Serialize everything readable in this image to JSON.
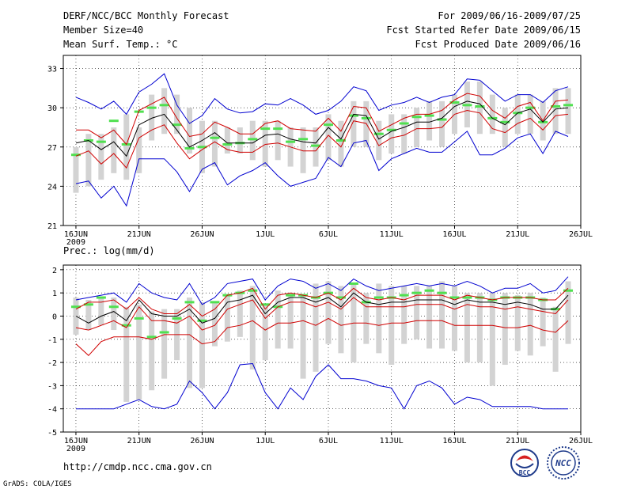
{
  "header": {
    "title": "DERF/NCC/BCC Monthly Forecast",
    "member_size": "Member Size=40",
    "variable": "Mean Surf. Temp.: °C",
    "period": "For 2009/06/16-2009/07/25",
    "fcst_refer": "Fcst Started Refer Date 2009/06/15",
    "fcst_produced": "Fcst Produced Date 2009/06/16"
  },
  "footer": {
    "url": "http://cmdp.ncc.cma.gov.cn",
    "grads": "GrADS: COLA/IGES",
    "logo_bcc": "BCC",
    "logo_ncc": "NCC"
  },
  "colors": {
    "box": "#d3d3d3",
    "member": "#50e050",
    "envelope": "#0000d0",
    "spread": "#d00000",
    "mean": "#000000",
    "grid": "#000000"
  },
  "chart_data": [
    {
      "type": "line",
      "title": "Mean Surf. Temp.: °C",
      "xlabel": "",
      "ylabel": "°C",
      "x_tick_labels": [
        "16JUN",
        "21JUN",
        "26JUN",
        "1JUL",
        "6JUL",
        "11JUL",
        "16JUL",
        "21JUL",
        "26JUL"
      ],
      "x_tick_days": [
        0,
        5,
        10,
        15,
        20,
        25,
        30,
        35,
        40
      ],
      "x_year_label": "2009",
      "xlim": [
        -1,
        40
      ],
      "ylim": [
        21,
        34
      ],
      "y_ticks": [
        21,
        24,
        27,
        30,
        33
      ],
      "y_tick_labels": [
        "21",
        "24",
        "27",
        "30",
        "33"
      ],
      "grid": true,
      "days": [
        0,
        1,
        2,
        3,
        4,
        5,
        6,
        7,
        8,
        9,
        10,
        11,
        12,
        13,
        14,
        15,
        16,
        17,
        18,
        19,
        20,
        21,
        22,
        23,
        24,
        25,
        26,
        27,
        28,
        29,
        30,
        31,
        32,
        33,
        34,
        35,
        36,
        37,
        38,
        39
      ],
      "series": [
        {
          "name": "max",
          "values": [
            30.8,
            30.4,
            29.9,
            30.5,
            29.5,
            31.2,
            31.8,
            32.6,
            30.2,
            28.8,
            29.4,
            30.7,
            29.9,
            29.6,
            29.7,
            30.3,
            30.2,
            30.7,
            30.2,
            29.5,
            29.8,
            30.5,
            31.6,
            31.3,
            29.8,
            30.2,
            30.4,
            30.8,
            30.4,
            30.8,
            31.0,
            32.2,
            32.1,
            31.3,
            30.5,
            31.0,
            31.0,
            30.4,
            31.3,
            31.6
          ]
        },
        {
          "name": "upper",
          "values": [
            28.3,
            28.3,
            27.7,
            28.3,
            27.2,
            29.8,
            30.3,
            30.8,
            29.2,
            27.8,
            28.0,
            28.9,
            28.5,
            28.0,
            28.0,
            28.8,
            29.0,
            28.4,
            28.3,
            28.2,
            29.2,
            28.2,
            30.1,
            30.0,
            28.2,
            28.7,
            29.2,
            29.5,
            29.5,
            29.8,
            30.6,
            31.1,
            30.9,
            29.8,
            29.2,
            30.1,
            30.4,
            29.0,
            30.5,
            30.6
          ]
        },
        {
          "name": "mean",
          "values": [
            27.3,
            27.5,
            26.8,
            27.4,
            26.3,
            28.7,
            29.2,
            29.5,
            28.3,
            27.0,
            27.5,
            28.1,
            27.3,
            27.3,
            27.3,
            27.9,
            28.0,
            27.6,
            27.4,
            27.3,
            28.5,
            27.6,
            29.5,
            29.4,
            27.6,
            28.2,
            28.5,
            28.9,
            28.9,
            29.2,
            30.1,
            30.5,
            30.3,
            29.2,
            28.7,
            29.6,
            29.9,
            28.9,
            29.9,
            30.0
          ]
        },
        {
          "name": "lower",
          "values": [
            26.3,
            26.7,
            25.7,
            26.5,
            25.4,
            27.7,
            28.3,
            28.7,
            27.3,
            26.1,
            26.8,
            27.4,
            26.8,
            26.6,
            26.6,
            27.2,
            27.3,
            27.0,
            26.7,
            26.7,
            27.9,
            27.0,
            29.0,
            28.8,
            27.1,
            27.7,
            27.9,
            28.4,
            28.4,
            28.5,
            29.5,
            29.8,
            29.6,
            28.4,
            28.1,
            28.8,
            29.2,
            28.3,
            29.4,
            29.5
          ]
        },
        {
          "name": "min",
          "values": [
            24.2,
            24.4,
            23.1,
            24.0,
            22.5,
            26.1,
            26.1,
            26.1,
            25.1,
            23.6,
            25.3,
            25.8,
            24.1,
            24.8,
            25.2,
            25.8,
            24.8,
            24.0,
            24.3,
            24.6,
            26.2,
            25.5,
            27.3,
            27.5,
            25.2,
            26.1,
            26.5,
            26.9,
            26.6,
            26.6,
            27.4,
            28.2,
            26.4,
            26.4,
            26.9,
            27.7,
            28.0,
            26.5,
            28.2,
            27.8
          ]
        }
      ],
      "ensemble_boxes": [
        [
          23.5,
          27.0
        ],
        [
          24.0,
          28.0
        ],
        [
          24.5,
          28.0
        ],
        [
          25.0,
          28.5
        ],
        [
          24.5,
          29.5
        ],
        [
          25.0,
          28.5
        ],
        [
          27.5,
          31.0
        ],
        [
          28.0,
          31.5
        ],
        [
          28.0,
          31.0
        ],
        [
          26.5,
          30.0
        ],
        [
          25.0,
          29.0
        ],
        [
          25.5,
          29.0
        ],
        [
          26.5,
          28.5
        ],
        [
          26.5,
          28.5
        ],
        [
          26.0,
          29.0
        ],
        [
          25.5,
          29.0
        ],
        [
          26.0,
          29.0
        ],
        [
          25.5,
          28.5
        ],
        [
          25.0,
          28.5
        ],
        [
          25.5,
          28.5
        ],
        [
          26.0,
          29.5
        ],
        [
          25.5,
          29.0
        ],
        [
          27.0,
          30.5
        ],
        [
          27.0,
          30.5
        ],
        [
          26.0,
          29.0
        ],
        [
          26.5,
          29.5
        ],
        [
          26.5,
          29.5
        ],
        [
          27.0,
          30.0
        ],
        [
          27.5,
          30.5
        ],
        [
          27.0,
          30.5
        ],
        [
          28.0,
          31.0
        ],
        [
          28.5,
          32.0
        ],
        [
          28.0,
          32.0
        ],
        [
          28.0,
          31.0
        ],
        [
          27.0,
          30.0
        ],
        [
          28.0,
          31.0
        ],
        [
          28.0,
          31.0
        ],
        [
          27.5,
          30.5
        ],
        [
          28.0,
          31.5
        ],
        [
          28.0,
          31.5
        ]
      ],
      "member_marks": [
        26.4,
        27.5,
        27.4,
        29.0,
        27.2,
        29.7,
        30.0,
        30.2,
        28.7,
        26.9,
        27.0,
        27.7,
        27.2,
        27.3,
        27.6,
        28.4,
        28.4,
        27.4,
        27.6,
        27.1,
        28.7,
        27.5,
        29.4,
        29.2,
        28.0,
        28.3,
        28.8,
        29.3,
        29.4,
        29.1,
        30.4,
        30.2,
        30.1,
        29.2,
        28.9,
        29.6,
        30.0,
        28.9,
        30.1,
        30.2
      ]
    },
    {
      "type": "line",
      "title": "Prec.: log(mm/d)",
      "xlabel": "",
      "ylabel": "log(mm/d)",
      "x_tick_labels": [
        "16JUN",
        "21JUN",
        "26JUN",
        "1JUL",
        "6JUL",
        "11JUL",
        "16JUL",
        "21JUL",
        "26JUL"
      ],
      "x_tick_days": [
        0,
        5,
        10,
        15,
        20,
        25,
        30,
        35,
        40
      ],
      "x_year_label": "2009",
      "xlim": [
        -1,
        40
      ],
      "ylim": [
        -5,
        2.2
      ],
      "y_ticks": [
        -5,
        -4,
        -3,
        -2,
        -1,
        0,
        1,
        2
      ],
      "y_tick_labels": [
        "-5",
        "-4",
        "-3",
        "-2",
        "-1",
        "0",
        "1",
        "2"
      ],
      "grid": true,
      "days": [
        0,
        1,
        2,
        3,
        4,
        5,
        6,
        7,
        8,
        9,
        10,
        11,
        12,
        13,
        14,
        15,
        16,
        17,
        18,
        19,
        20,
        21,
        22,
        23,
        24,
        25,
        26,
        27,
        28,
        29,
        30,
        31,
        32,
        33,
        34,
        35,
        36,
        37,
        38,
        39
      ],
      "series": [
        {
          "name": "max",
          "values": [
            0.7,
            0.8,
            0.9,
            1.0,
            0.6,
            1.4,
            1.0,
            0.8,
            0.7,
            1.4,
            0.5,
            0.8,
            1.4,
            1.5,
            1.6,
            0.7,
            1.3,
            1.6,
            1.5,
            1.2,
            1.4,
            1.1,
            1.6,
            1.3,
            1.1,
            1.2,
            1.3,
            1.4,
            1.3,
            1.4,
            1.3,
            1.5,
            1.3,
            1.0,
            1.2,
            1.2,
            1.4,
            1.0,
            1.1,
            1.7
          ]
        },
        {
          "name": "upper",
          "values": [
            0.3,
            0.6,
            0.6,
            0.7,
            0.3,
            0.8,
            0.3,
            0.1,
            0.1,
            0.5,
            0.0,
            0.3,
            0.9,
            1.0,
            1.2,
            0.3,
            0.9,
            1.0,
            0.9,
            0.8,
            1.0,
            0.7,
            1.2,
            0.8,
            0.7,
            0.8,
            0.7,
            0.9,
            0.9,
            0.9,
            0.7,
            0.9,
            0.8,
            0.7,
            0.8,
            0.8,
            0.8,
            0.7,
            0.7,
            1.2
          ]
        },
        {
          "name": "mean",
          "values": [
            0.0,
            -0.3,
            0.0,
            0.2,
            -0.2,
            0.7,
            0.1,
            0.0,
            0.0,
            0.3,
            -0.3,
            -0.1,
            0.6,
            0.7,
            0.9,
            0.1,
            0.6,
            0.8,
            0.8,
            0.6,
            0.8,
            0.4,
            1.0,
            0.6,
            0.5,
            0.6,
            0.6,
            0.7,
            0.7,
            0.7,
            0.5,
            0.7,
            0.6,
            0.6,
            0.5,
            0.6,
            0.5,
            0.3,
            0.3,
            0.9
          ]
        },
        {
          "name": "lower",
          "values": [
            -0.5,
            -0.6,
            -0.4,
            -0.2,
            -0.5,
            0.4,
            -0.2,
            -0.2,
            -0.3,
            0.0,
            -0.6,
            -0.4,
            0.3,
            0.5,
            0.7,
            -0.1,
            0.4,
            0.6,
            0.6,
            0.4,
            0.6,
            0.3,
            0.8,
            0.4,
            0.4,
            0.4,
            0.4,
            0.5,
            0.5,
            0.5,
            0.3,
            0.5,
            0.4,
            0.4,
            0.3,
            0.4,
            0.3,
            0.2,
            0.1,
            0.7
          ]
        },
        {
          "name": "lower2",
          "values": [
            -1.2,
            -1.7,
            -1.1,
            -0.9,
            -0.9,
            -0.9,
            -1.0,
            -0.8,
            -0.8,
            -0.8,
            -1.2,
            -1.1,
            -0.5,
            -0.4,
            -0.2,
            -0.6,
            -0.3,
            -0.3,
            -0.2,
            -0.4,
            -0.1,
            -0.4,
            -0.3,
            -0.3,
            -0.4,
            -0.3,
            -0.3,
            -0.2,
            -0.2,
            -0.2,
            -0.4,
            -0.4,
            -0.4,
            -0.4,
            -0.5,
            -0.5,
            -0.4,
            -0.6,
            -0.7,
            -0.2
          ]
        },
        {
          "name": "min",
          "values": [
            -4.0,
            -4.0,
            -4.0,
            -4.0,
            -3.8,
            -3.6,
            -3.9,
            -4.0,
            -3.8,
            -2.8,
            -3.3,
            -4.0,
            -3.3,
            -2.1,
            -2.05,
            -3.3,
            -4.0,
            -3.1,
            -3.6,
            -2.6,
            -2.1,
            -2.7,
            -2.7,
            -2.8,
            -3.0,
            -3.1,
            -4.0,
            -3.0,
            -2.8,
            -3.1,
            -3.8,
            -3.5,
            -3.6,
            -3.9,
            -3.9,
            -3.9,
            -3.9,
            -4.0,
            -4.0,
            -4.0
          ]
        }
      ],
      "ensemble_boxes": [
        [
          -0.8,
          0.8
        ],
        [
          -0.6,
          0.7
        ],
        [
          -0.4,
          0.8
        ],
        [
          -0.6,
          0.8
        ],
        [
          -3.7,
          0.4
        ],
        [
          -3.6,
          0.5
        ],
        [
          -3.2,
          0.2
        ],
        [
          -2.7,
          0.3
        ],
        [
          -1.9,
          0.3
        ],
        [
          -3.1,
          0.8
        ],
        [
          -3.1,
          0.6
        ],
        [
          -1.3,
          0.6
        ],
        [
          -1.1,
          0.9
        ],
        [
          -0.9,
          1.1
        ],
        [
          -2.3,
          1.3
        ],
        [
          -1.9,
          0.5
        ],
        [
          -1.4,
          1.1
        ],
        [
          -1.4,
          1.0
        ],
        [
          -2.7,
          0.9
        ],
        [
          -2.4,
          1.4
        ],
        [
          -1.2,
          1.5
        ],
        [
          -1.6,
          1.3
        ],
        [
          -2.0,
          1.4
        ],
        [
          -1.2,
          1.0
        ],
        [
          -1.6,
          1.4
        ],
        [
          -2.1,
          1.3
        ],
        [
          -1.2,
          1.3
        ],
        [
          -1.0,
          1.3
        ],
        [
          -1.4,
          1.3
        ],
        [
          -1.4,
          1.5
        ],
        [
          -1.5,
          1.3
        ],
        [
          -2.0,
          1.0
        ],
        [
          -2.0,
          1.0
        ],
        [
          -3.0,
          1.0
        ],
        [
          -2.1,
          1.0
        ],
        [
          -1.5,
          0.9
        ],
        [
          -1.7,
          1.0
        ],
        [
          -1.3,
          0.8
        ],
        [
          -2.4,
          0.4
        ],
        [
          -1.2,
          1.5
        ]
      ],
      "member_marks": [
        0.4,
        0.5,
        0.8,
        0.4,
        -0.4,
        -0.1,
        -0.9,
        -0.7,
        -0.1,
        0.6,
        -0.2,
        0.6,
        0.9,
        1.0,
        1.1,
        0.5,
        0.4,
        0.9,
        0.9,
        0.8,
        1.0,
        0.8,
        1.4,
        0.6,
        0.8,
        0.8,
        0.9,
        1.0,
        1.1,
        1.0,
        0.8,
        0.8,
        0.8,
        0.7,
        0.8,
        0.8,
        0.8,
        0.7,
        0.3,
        1.1
      ]
    }
  ]
}
